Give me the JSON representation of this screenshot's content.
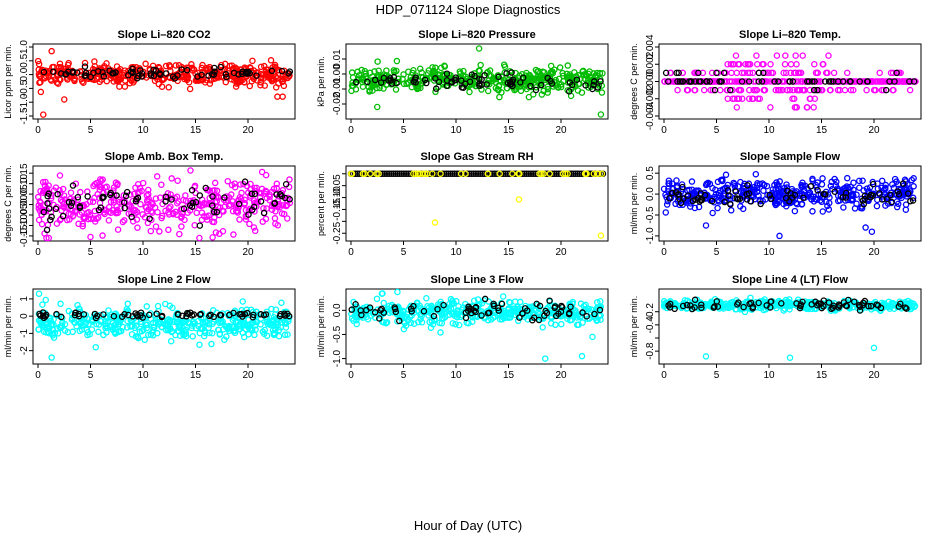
{
  "title": "HDP_071124  Slope Diagnostics",
  "xlabel": "Hour of Day (UTC)",
  "chart_data": [
    {
      "type": "scatter",
      "title": "Slope Li–820 CO2",
      "ylabel": "Licor ppm per min.",
      "ylim": [
        -1.5,
        1.0
      ],
      "yticks": [
        -1.5,
        -1.0,
        -0.5,
        0.0,
        0.5,
        1.0
      ],
      "ytick_labels": [
        "-1.5",
        "-1.0",
        "-0.5",
        "0.0",
        "0.5",
        "1.0"
      ],
      "xlim": [
        0,
        24
      ],
      "xticks": [
        0,
        5,
        10,
        15,
        20
      ],
      "color": "#ff0000",
      "center": 0.0,
      "spread": 0.18,
      "black_center": 0.05,
      "black_spread": 0.1,
      "outliers": [
        [
          1.3,
          0.85
        ],
        [
          0.5,
          -1.45
        ],
        [
          2.5,
          -0.9
        ],
        [
          22.8,
          -0.8
        ],
        [
          23.3,
          -0.8
        ]
      ],
      "n": 420
    },
    {
      "type": "scatter",
      "title": "Slope Li–820 Pressure",
      "ylabel": "kPa per min.",
      "ylim": [
        -0.028,
        0.018
      ],
      "yticks": [
        -0.02,
        -0.01,
        0.0,
        0.01
      ],
      "ytick_labels": [
        "-0.02",
        "-0.01",
        "0.00",
        "0.01"
      ],
      "xlim": [
        0,
        24
      ],
      "xticks": [
        0,
        5,
        10,
        15,
        20
      ],
      "color": "#00bb00",
      "center": -0.004,
      "spread": 0.004,
      "black_center": -0.005,
      "black_spread": 0.0025,
      "outliers": [
        [
          12.2,
          0.017
        ],
        [
          23.8,
          -0.027
        ],
        [
          2.5,
          -0.022
        ]
      ],
      "n": 420
    },
    {
      "type": "scatter",
      "title": "Slope Li–820 Temp.",
      "ylabel": "degrees C per min.",
      "ylim": [
        -0.004,
        0.004
      ],
      "yticks": [
        -0.004,
        -0.002,
        0.0,
        0.002,
        0.004
      ],
      "ytick_labels": [
        "-0.004",
        "-0.002",
        "0.000",
        "0.002",
        "0.004"
      ],
      "xlim": [
        0,
        24
      ],
      "xticks": [
        0,
        5,
        10,
        15,
        20
      ],
      "color": "#ff00ff",
      "quantized": [
        0.0,
        0.001,
        -0.001,
        0.002,
        -0.002,
        0.003,
        -0.003,
        0.004,
        -0.004
      ],
      "n": 420
    },
    {
      "type": "scatter",
      "title": "Slope Amb. Box Temp.",
      "ylabel": "degrees C per min.",
      "ylim": [
        -0.16,
        0.17
      ],
      "yticks": [
        -0.15,
        -0.1,
        -0.05,
        0.0,
        0.05,
        0.1,
        0.15
      ],
      "ytick_labels": [
        "-0.15",
        "-0.10",
        "-0.05",
        "0.00",
        "0.05",
        "0.10",
        "0.15"
      ],
      "xlim": [
        0,
        24
      ],
      "xticks": [
        0,
        5,
        10,
        15,
        20
      ],
      "color": "#ff00ff",
      "center": 0.0,
      "spread": 0.06,
      "black_center": 0.0,
      "black_spread": 0.05,
      "outliers": [
        [
          5.0,
          -0.155
        ]
      ],
      "n": 420
    },
    {
      "type": "scatter",
      "title": "Slope Gas Stream RH",
      "ylabel": "percent per min.",
      "ylim": [
        -0.27,
        0.02
      ],
      "yticks": [
        -0.25,
        -0.2,
        -0.15,
        -0.1,
        -0.05,
        0.0
      ],
      "ytick_labels": [
        "-0.25",
        "",
        "-0.15",
        "-0.10",
        "-0.05",
        ""
      ],
      "xlim": [
        0,
        24
      ],
      "xticks": [
        0,
        5,
        10,
        15,
        20
      ],
      "color": "#ffff00",
      "center": 0.0,
      "spread": 0.0,
      "black_center": 0.0,
      "black_spread": 0.0,
      "outliers": [
        [
          8.0,
          -0.205
        ],
        [
          16.0,
          -0.108
        ],
        [
          23.8,
          -0.26
        ],
        [
          0.1,
          0.0
        ]
      ],
      "n": 120
    },
    {
      "type": "scatter",
      "title": "Slope Sample Flow",
      "ylabel": "ml/min per min.",
      "ylim": [
        -1.05,
        0.6
      ],
      "yticks": [
        -1.0,
        -0.5,
        0.0,
        0.5
      ],
      "ytick_labels": [
        "-1.0",
        "-0.5",
        "0.0",
        "0.5"
      ],
      "xlim": [
        0,
        24
      ],
      "xticks": [
        0,
        5,
        10,
        15,
        20
      ],
      "color": "#0000ff",
      "center": 0.0,
      "spread": 0.17,
      "black_center": -0.05,
      "black_spread": 0.12,
      "outliers": [
        [
          11.0,
          -1.0
        ],
        [
          19.2,
          -0.8
        ],
        [
          4.0,
          -0.75
        ],
        [
          19.8,
          -0.9
        ]
      ],
      "n": 420
    },
    {
      "type": "scatter",
      "title": "Slope Line 2 Flow",
      "ylabel": "ml/min per min.",
      "ylim": [
        -2.6,
        1.4
      ],
      "yticks": [
        -2.0,
        -1.0,
        0.0,
        1.0
      ],
      "ytick_labels": [
        "-2",
        "-1",
        "0",
        "1"
      ],
      "xlim": [
        0,
        24
      ],
      "xticks": [
        0,
        5,
        10,
        15,
        20
      ],
      "color": "#00ffff",
      "center": -0.4,
      "spread": 0.45,
      "black_center": 0.05,
      "black_spread": 0.08,
      "outliers": [
        [
          0.1,
          1.3
        ],
        [
          19.5,
          0.85
        ],
        [
          1.3,
          -2.4
        ],
        [
          5.5,
          -1.8
        ]
      ],
      "n": 420
    },
    {
      "type": "scatter",
      "title": "Slope Line 3 Flow",
      "ylabel": "ml/min per min.",
      "ylim": [
        -1.05,
        0.38
      ],
      "yticks": [
        -1.0,
        -0.5,
        0.0
      ],
      "ytick_labels": [
        "-1.0",
        "-0.5",
        "0.0"
      ],
      "xlim": [
        0,
        24
      ],
      "xticks": [
        0,
        5,
        10,
        15,
        20
      ],
      "color": "#00ffff",
      "center": -0.05,
      "spread": 0.12,
      "black_center": 0.0,
      "black_spread": 0.1,
      "outliers": [
        [
          18.5,
          -1.0
        ],
        [
          22.0,
          -0.95
        ],
        [
          3.0,
          0.35
        ],
        [
          23.0,
          -0.55
        ]
      ],
      "n": 420
    },
    {
      "type": "scatter",
      "title": "Slope Line 4 (LT) Flow",
      "ylabel": "ml/min per min.",
      "ylim": [
        -0.95,
        0.1
      ],
      "yticks": [
        -0.8,
        -0.6,
        -0.4,
        -0.2
      ],
      "ytick_labels": [
        "-0.8",
        "",
        "-0.4",
        "-0.2"
      ],
      "xlim": [
        0,
        24
      ],
      "xticks": [
        0,
        5,
        10,
        15,
        20
      ],
      "color": "#00ffff",
      "center": -0.1,
      "spread": 0.035,
      "black_center": -0.1,
      "black_spread": 0.03,
      "outliers": [
        [
          4.0,
          -0.88
        ],
        [
          12.0,
          -0.9
        ],
        [
          20.0,
          -0.75
        ]
      ],
      "n": 420
    }
  ]
}
